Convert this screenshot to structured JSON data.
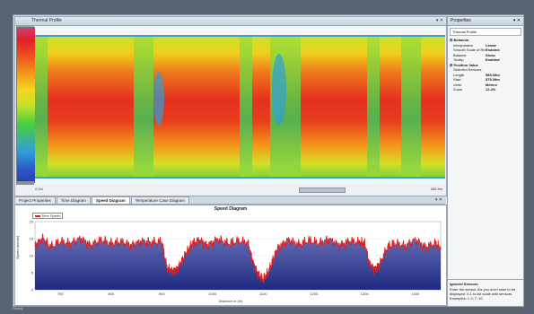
{
  "thermal": {
    "title": "Thermal Profile",
    "window_controls": "▾ ✕",
    "left_distance": "0.0m",
    "right_distance": "585.9m"
  },
  "tabs": {
    "items": [
      "Project Properties",
      "Time Diagram",
      "Speed Diagram",
      "Temperature Case Diagram"
    ],
    "active": "Speed Diagram",
    "controls": "▾ ✕"
  },
  "properties": {
    "title": "Properties",
    "controls": "▾ ✕",
    "selected": "Thermal Profile",
    "rows": [
      {
        "k": "Behavior",
        "v": "",
        "cat": true
      },
      {
        "k": "Interpolation",
        "v": "Linear"
      },
      {
        "k": "Smooth Scale of Re...",
        "v": "Enabled"
      },
      {
        "k": "Balance",
        "v": "Show"
      },
      {
        "k": "Tooltip",
        "v": "Enabled"
      },
      {
        "k": "Position Value",
        "v": "",
        "cat": true
      },
      {
        "k": "Selected Sensors",
        "v": ""
      },
      {
        "k": "Length",
        "v": "585.09m"
      },
      {
        "k": "Start",
        "v": "575.39m"
      },
      {
        "k": "Units",
        "v": "Meters"
      },
      {
        "k": "Zoom",
        "v": "12.4%"
      }
    ],
    "footer_title": "Ignored Sensors",
    "footer_text": "Enter the sensor IDs you don't want to be displayed. 0-1 to list scale with sensors. Examples: 1-3; 7; 10"
  },
  "speed": {
    "title": "Speed Diagram",
    "legend": "Time Speed",
    "ylabel": "Speed (m/min)",
    "xlabel": "Distance in (m)"
  },
  "chart_data": {
    "type": "area",
    "title": "Speed Diagram",
    "xlabel": "Distance in (m)",
    "ylabel": "Speed (m/min)",
    "x_ticks": [
      "700",
      "800",
      "900",
      "1000",
      "1100",
      "1200",
      "1300",
      "1400"
    ],
    "y_ticks": [
      "0",
      "5",
      "10",
      "15",
      "20"
    ],
    "xlim": [
      650,
      1450
    ],
    "ylim": [
      0,
      20
    ],
    "series": [
      {
        "name": "Time Speed",
        "x": [
          650,
          665,
          680,
          700,
          720,
          740,
          760,
          780,
          800,
          820,
          840,
          860,
          880,
          900,
          910,
          920,
          930,
          940,
          950,
          960,
          975,
          990,
          1010,
          1030,
          1050,
          1070,
          1080,
          1090,
          1100,
          1110,
          1120,
          1130,
          1150,
          1170,
          1190,
          1210,
          1230,
          1250,
          1270,
          1290,
          1300,
          1310,
          1320,
          1330,
          1345,
          1360,
          1380,
          1400,
          1420,
          1440,
          1450
        ],
        "y": [
          13,
          15,
          12.5,
          14,
          13.5,
          15,
          13,
          14.5,
          13.5,
          14,
          13,
          14.2,
          13.8,
          14,
          6.5,
          5.5,
          6,
          8.5,
          11,
          13.5,
          14.5,
          13,
          14.8,
          13.5,
          14.2,
          13.8,
          8,
          4.5,
          3,
          5,
          9,
          12.5,
          14.6,
          13.2,
          14.4,
          13.6,
          14.8,
          13,
          14.2,
          13.8,
          13.5,
          7.5,
          6,
          7.5,
          12.5,
          13.5,
          12.8,
          14.6,
          12.5,
          13.5,
          12
        ]
      }
    ],
    "grid": true,
    "colors": {
      "line": "#e02020",
      "fill_top": "#6a70b8",
      "fill_bottom": "#1e2a80"
    }
  },
  "status": "Ready"
}
